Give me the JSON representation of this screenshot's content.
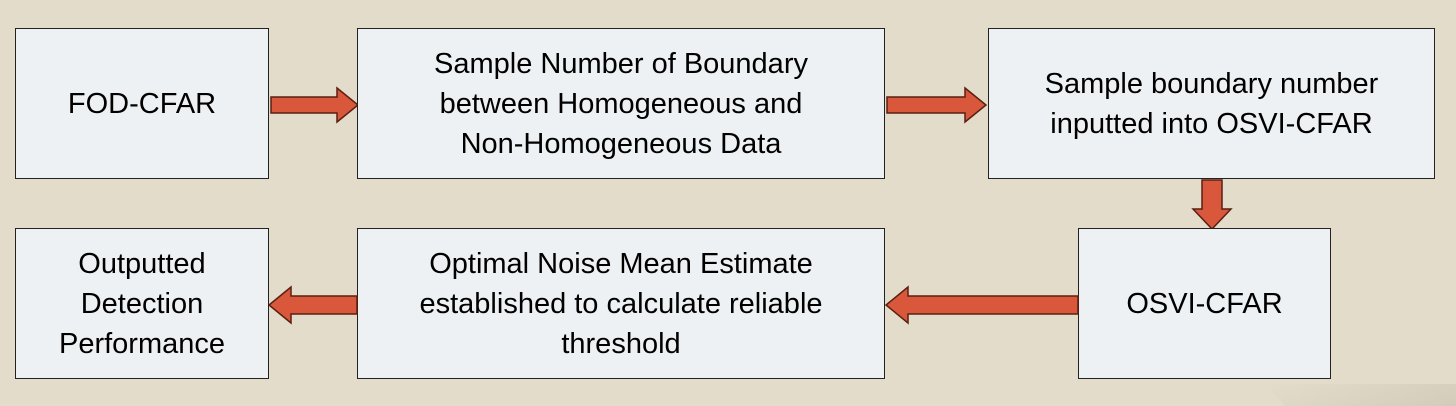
{
  "diagram": {
    "nodes": [
      {
        "id": "b1",
        "label": "FOD-CFAR"
      },
      {
        "id": "b2",
        "label": "Sample Number of Boundary\nbetween Homogeneous and\nNon-Homogeneous Data"
      },
      {
        "id": "b3",
        "label": "Sample boundary number\ninputted into OSVI-CFAR"
      },
      {
        "id": "b4",
        "label": "OSVI-CFAR"
      },
      {
        "id": "b5",
        "label": "Optimal Noise Mean Estimate\nestablished to calculate reliable\nthreshold"
      },
      {
        "id": "b6",
        "label": "Outputted\nDetection\nPerformance"
      }
    ],
    "edges": [
      {
        "from": "b1",
        "to": "b2"
      },
      {
        "from": "b2",
        "to": "b3"
      },
      {
        "from": "b3",
        "to": "b4"
      },
      {
        "from": "b4",
        "to": "b5"
      },
      {
        "from": "b5",
        "to": "b6"
      }
    ],
    "colors": {
      "background": "#e3dccb",
      "box_fill": "#eef1f3",
      "box_border": "#222222",
      "arrow_fill": "#d9583b",
      "arrow_outline": "#5a1f12"
    }
  }
}
